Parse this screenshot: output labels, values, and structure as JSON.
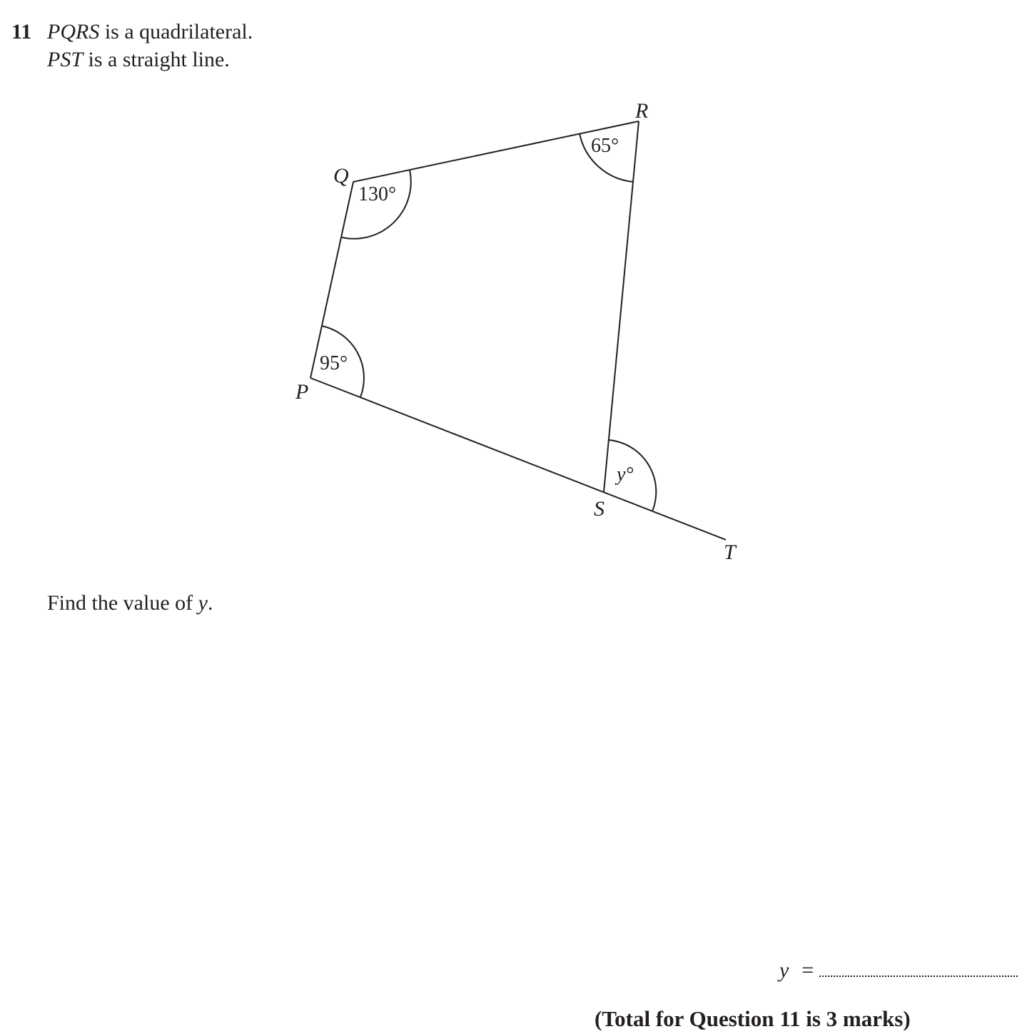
{
  "question": {
    "number": "11",
    "line1_shape": "PQRS",
    "line1_rest": " is a quadrilateral.",
    "line2_shape": "PST",
    "line2_rest": " is a straight line.",
    "prompt_text": "Find the value of ",
    "prompt_var": "y",
    "prompt_end": ".",
    "answer_var": "y",
    "answer_equals": "=",
    "total": "(Total for Question 11 is 3 marks)"
  },
  "diagram": {
    "vertices": {
      "P": "P",
      "Q": "Q",
      "R": "R",
      "S": "S",
      "T": "T"
    },
    "angles": {
      "P": "95°",
      "Q": "130°",
      "R": "65°",
      "y": "y°"
    }
  }
}
